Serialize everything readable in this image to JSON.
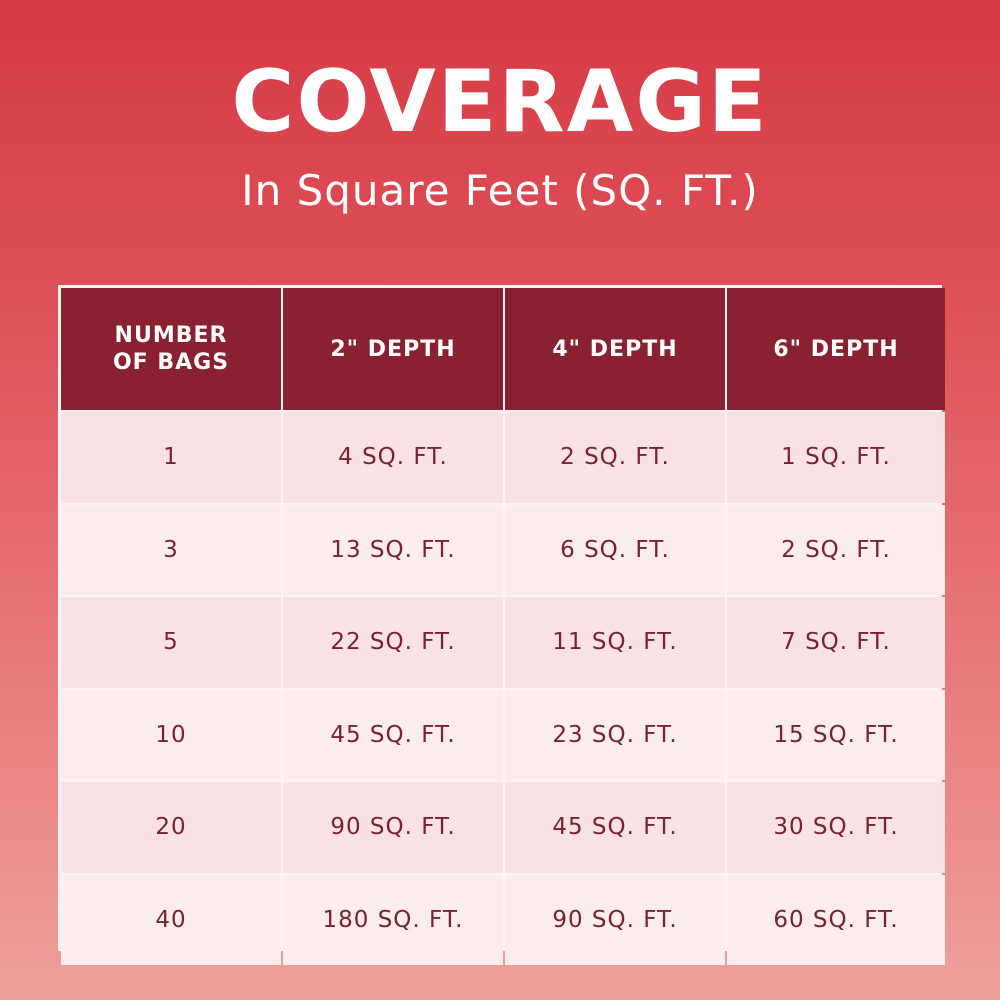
{
  "header": {
    "title": "COVERAGE",
    "subtitle": "In Square Feet (SQ. FT.)"
  },
  "colors": {
    "header_fill": "#8a2130",
    "body_fill": "#f9e2e5",
    "text_dark": "#7a2230",
    "background_top": "#d63a44",
    "background_bottom": "#eea09c"
  },
  "chart_data": {
    "type": "table",
    "columns": [
      "NUMBER OF BAGS",
      "2\" DEPTH",
      "4\" DEPTH",
      "6\" DEPTH"
    ],
    "rows": [
      [
        "1",
        "4 SQ. FT.",
        "2 SQ. FT.",
        "1 SQ. FT."
      ],
      [
        "3",
        "13 SQ. FT.",
        "6 SQ. FT.",
        "2 SQ. FT."
      ],
      [
        "5",
        "22 SQ. FT.",
        "11 SQ. FT.",
        "7 SQ. FT."
      ],
      [
        "10",
        "45 SQ. FT.",
        "23 SQ. FT.",
        "15 SQ. FT."
      ],
      [
        "20",
        "90 SQ. FT.",
        "45 SQ. FT.",
        "30 SQ. FT."
      ],
      [
        "40",
        "180 SQ. FT.",
        "90 SQ. FT.",
        "60 SQ. FT."
      ]
    ]
  }
}
